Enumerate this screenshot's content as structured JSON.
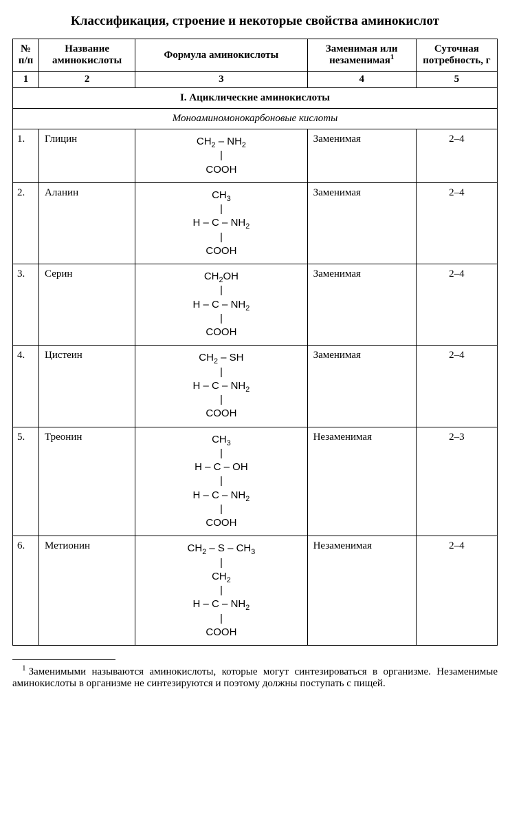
{
  "title": "Классификация, строение и некоторые свойства аминокислот",
  "columns": {
    "c1": "№ п/п",
    "c2": "Название аминокислоты",
    "c3": "Формула аминокислоты",
    "c4_pre": "Заменимая или незаменимая",
    "c4_sup": "1",
    "c5": "Суточная потребность, г"
  },
  "colnums": {
    "n1": "1",
    "n2": "2",
    "n3": "3",
    "n4": "4",
    "n5": "5"
  },
  "section1": "I. Ациклические аминокислоты",
  "subsection1": "Моноаминомонокарбоновые кислоты",
  "rows": {
    "r1": {
      "idx": "1.",
      "name": "Глицин",
      "ess": "Заменимая",
      "req": "2–4"
    },
    "r2": {
      "idx": "2.",
      "name": "Аланин",
      "ess": "Заменимая",
      "req": "2–4"
    },
    "r3": {
      "idx": "3.",
      "name": "Серин",
      "ess": "Заменимая",
      "req": "2–4"
    },
    "r4": {
      "idx": "4.",
      "name": "Цистеин",
      "ess": "Заменимая",
      "req": "2–4"
    },
    "r5": {
      "idx": "5.",
      "name": "Треонин",
      "ess": "Незаменимая",
      "req": "2–3"
    },
    "r6": {
      "idx": "6.",
      "name": "Метионин",
      "ess": "Незаменимая",
      "req": "2–4"
    }
  },
  "formula_parts": {
    "CH2": "CH",
    "CH2_sub": "2",
    "NH2": "NH",
    "NH2_sub": "2",
    "CH3": "CH",
    "CH3_sub": "3",
    "CH2OH": "CH",
    "CH2OH_sub": "2",
    "CH2OH_tail": "OH",
    "SH": "SH",
    "OH": "OH",
    "S": "S",
    "COOH": "COOH",
    "dash": " – ",
    "bar": "|",
    "HCNH2_pre": "H – C – NH",
    "HCNH2_sub": "2",
    "HCOH": "H – C – OH"
  },
  "footnote": {
    "marker": "1",
    "text": "Заменимыми называются аминокислоты, которые могут синтезиро­ваться в организме. Незаменимые аминокислоты в организме не синтезиру­ются и поэтому должны поступать с пищей."
  },
  "col_widths": {
    "c1": "38px",
    "c2": "140px",
    "c3": "250px",
    "c4": "158px",
    "c5": "118px"
  }
}
